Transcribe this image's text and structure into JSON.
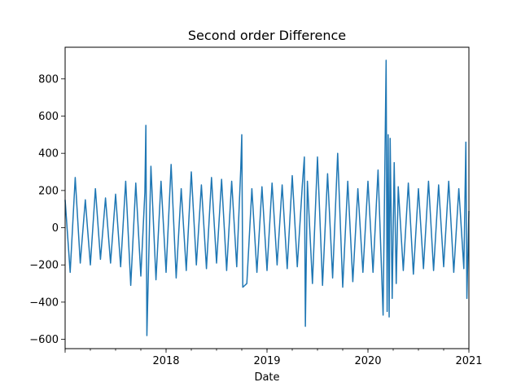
{
  "chart_data": {
    "type": "line",
    "title": "Second order Difference",
    "xlabel": "Date",
    "ylabel": "",
    "xlim": [
      2017.0,
      2021.0
    ],
    "ylim": [
      -650,
      970
    ],
    "x_ticks": [
      {
        "value": 2018,
        "label": "2018"
      },
      {
        "value": 2019,
        "label": "2019"
      },
      {
        "value": 2020,
        "label": "2020"
      },
      {
        "value": 2021,
        "label": "2021"
      }
    ],
    "y_ticks": [
      {
        "value": -600,
        "label": "−600"
      },
      {
        "value": -400,
        "label": "−400"
      },
      {
        "value": -200,
        "label": "−200"
      },
      {
        "value": 0,
        "label": "0"
      },
      {
        "value": 200,
        "label": "200"
      },
      {
        "value": 400,
        "label": "400"
      },
      {
        "value": 600,
        "label": "600"
      },
      {
        "value": 800,
        "label": "800"
      }
    ],
    "series": [
      {
        "name": "Second order Difference",
        "color": "#1f77b4",
        "x": [
          2017.0,
          2017.05,
          2017.1,
          2017.15,
          2017.2,
          2017.25,
          2017.3,
          2017.35,
          2017.4,
          2017.45,
          2017.5,
          2017.55,
          2017.6,
          2017.65,
          2017.7,
          2017.75,
          2017.79,
          2017.8,
          2017.81,
          2017.85,
          2017.9,
          2017.95,
          2018.0,
          2018.05,
          2018.1,
          2018.15,
          2018.2,
          2018.25,
          2018.3,
          2018.35,
          2018.4,
          2018.45,
          2018.5,
          2018.55,
          2018.6,
          2018.65,
          2018.7,
          2018.74,
          2018.75,
          2018.76,
          2018.8,
          2018.85,
          2018.9,
          2018.95,
          2019.0,
          2019.05,
          2019.1,
          2019.15,
          2019.2,
          2019.25,
          2019.3,
          2019.35,
          2019.37,
          2019.38,
          2019.4,
          2019.45,
          2019.5,
          2019.55,
          2019.6,
          2019.65,
          2019.7,
          2019.75,
          2019.8,
          2019.85,
          2019.9,
          2019.95,
          2020.0,
          2020.05,
          2020.1,
          2020.15,
          2020.18,
          2020.19,
          2020.2,
          2020.21,
          2020.22,
          2020.24,
          2020.26,
          2020.28,
          2020.3,
          2020.35,
          2020.4,
          2020.45,
          2020.5,
          2020.55,
          2020.6,
          2020.65,
          2020.7,
          2020.75,
          2020.8,
          2020.85,
          2020.9,
          2020.95,
          2020.97,
          2020.98,
          2021.0
        ],
        "y": [
          150,
          -240,
          270,
          -190,
          150,
          -200,
          210,
          -170,
          160,
          -190,
          180,
          -210,
          250,
          -310,
          240,
          -260,
          190,
          550,
          -580,
          330,
          -280,
          250,
          -240,
          340,
          -270,
          210,
          -230,
          300,
          -200,
          230,
          -220,
          270,
          -190,
          260,
          -230,
          250,
          -210,
          320,
          500,
          -320,
          -300,
          210,
          -240,
          220,
          -230,
          240,
          -200,
          230,
          -220,
          280,
          -210,
          230,
          380,
          -530,
          250,
          -300,
          380,
          -310,
          290,
          -270,
          400,
          -320,
          250,
          -290,
          210,
          -240,
          250,
          -240,
          310,
          -470,
          900,
          -450,
          500,
          -480,
          480,
          -380,
          350,
          -300,
          220,
          -230,
          240,
          -250,
          210,
          -220,
          250,
          -230,
          230,
          -210,
          250,
          -240,
          210,
          -220,
          460,
          -380,
          90
        ]
      }
    ]
  }
}
